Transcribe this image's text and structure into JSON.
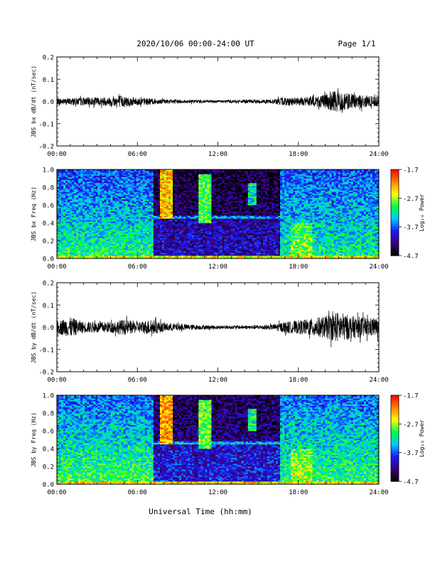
{
  "header": {
    "date_range": "2020/10/06  00:00-24:00 UT",
    "page": "Page 1/1"
  },
  "x_axis": {
    "label": "Universal Time (hh:mm)",
    "ticks": [
      0,
      6,
      12,
      18,
      24
    ],
    "tick_labels": [
      "00:00",
      "06:00",
      "12:00",
      "18:00",
      "24:00"
    ],
    "range": [
      0,
      24
    ]
  },
  "colorbar": {
    "label": "Log₁₀ Power",
    "tick_values": [
      -1.7,
      -2.7,
      -3.7,
      -4.7
    ],
    "tick_labels": [
      "-1.7",
      "-2.7",
      "-3.7",
      "-4.7"
    ],
    "range": [
      -4.7,
      -1.7
    ],
    "colors": [
      "#000000",
      "#3a0078",
      "#1a1aff",
      "#00c8ff",
      "#00ff40",
      "#ffff00",
      "#ff8000",
      "#ff0000"
    ]
  },
  "chart_data": [
    {
      "type": "line",
      "ylabel": "JBS bx dB/dt (nT/sec)",
      "ylim": [
        -0.2,
        0.2
      ],
      "y_ticks": [
        0.2,
        0.1,
        0.0,
        -0.1,
        -0.2
      ],
      "y_tick_labels": [
        "0.2",
        "0.1",
        "0.0",
        "-0.1",
        "-0.2"
      ],
      "x": [
        0,
        2,
        4,
        4.5,
        6,
        8,
        10,
        12,
        14,
        16,
        17,
        18,
        20,
        20.5,
        22,
        24
      ],
      "envelope": [
        0.015,
        0.018,
        0.02,
        0.03,
        0.018,
        0.01,
        0.008,
        0.006,
        0.008,
        0.01,
        0.02,
        0.018,
        0.03,
        0.05,
        0.035,
        0.02
      ],
      "color": "#000000"
    },
    {
      "type": "heatmap",
      "ylabel": "JBS bx Freq (Hz)",
      "ylim": [
        0.0,
        1.0
      ],
      "y_ticks": [
        1.0,
        0.8,
        0.6,
        0.4,
        0.2,
        0.0
      ],
      "y_tick_labels": [
        "1.0",
        "0.8",
        "0.6",
        "0.4",
        "0.2",
        "0.0"
      ]
    },
    {
      "type": "line",
      "ylabel": "JBS by dB/dt (nT/sec)",
      "ylim": [
        -0.2,
        0.2
      ],
      "y_ticks": [
        0.2,
        0.1,
        0.0,
        -0.1,
        -0.2
      ],
      "y_tick_labels": [
        "0.2",
        "0.1",
        "0.0",
        "-0.1",
        "-0.2"
      ],
      "x": [
        0,
        1,
        2,
        4,
        5,
        6,
        7,
        8,
        10,
        12,
        14,
        16,
        17,
        18,
        20,
        21,
        22,
        24
      ],
      "envelope": [
        0.03,
        0.045,
        0.025,
        0.025,
        0.035,
        0.025,
        0.035,
        0.02,
        0.012,
        0.008,
        0.008,
        0.012,
        0.025,
        0.03,
        0.05,
        0.07,
        0.05,
        0.04
      ],
      "color": "#000000"
    },
    {
      "type": "heatmap",
      "ylabel": "JBS by Freq (Hz)",
      "ylim": [
        0.0,
        1.0
      ],
      "y_ticks": [
        1.0,
        0.8,
        0.6,
        0.4,
        0.2,
        0.0
      ],
      "y_tick_labels": [
        "1.0",
        "0.8",
        "0.6",
        "0.4",
        "0.2",
        "0.0"
      ]
    }
  ]
}
